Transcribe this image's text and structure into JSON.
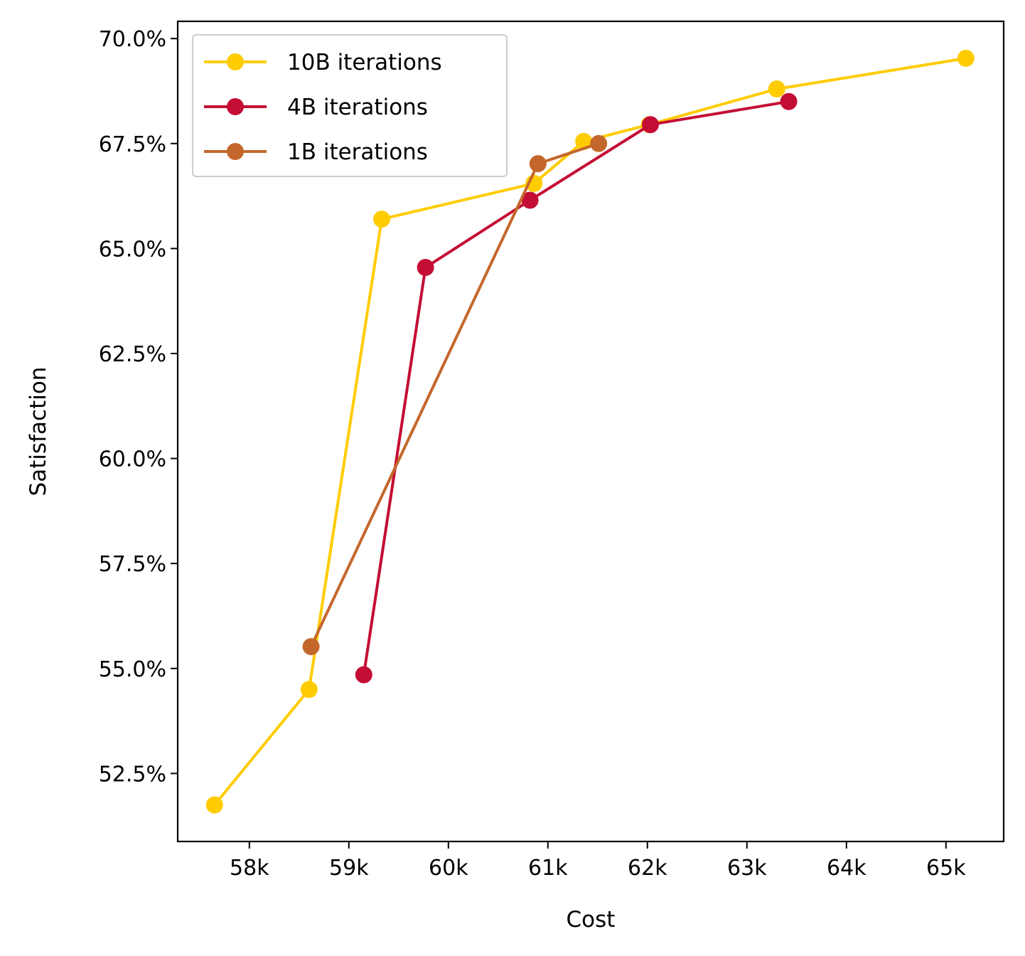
{
  "chart_data": {
    "type": "line",
    "xlabel": "Cost",
    "ylabel": "Satisfaction",
    "xlim": [
      57280,
      65580
    ],
    "ylim": [
      0.5088,
      0.7041
    ],
    "x_ticks": [
      {
        "value": 58000,
        "label": "58k"
      },
      {
        "value": 59000,
        "label": "59k"
      },
      {
        "value": 60000,
        "label": "60k"
      },
      {
        "value": 61000,
        "label": "61k"
      },
      {
        "value": 62000,
        "label": "62k"
      },
      {
        "value": 63000,
        "label": "63k"
      },
      {
        "value": 64000,
        "label": "64k"
      },
      {
        "value": 65000,
        "label": "65k"
      }
    ],
    "y_ticks": [
      {
        "value": 0.525,
        "label": "52.5%"
      },
      {
        "value": 0.55,
        "label": "55.0%"
      },
      {
        "value": 0.575,
        "label": "57.5%"
      },
      {
        "value": 0.6,
        "label": "60.0%"
      },
      {
        "value": 0.625,
        "label": "62.5%"
      },
      {
        "value": 0.65,
        "label": "65.0%"
      },
      {
        "value": 0.675,
        "label": "67.5%"
      },
      {
        "value": 0.7,
        "label": "70.0%"
      }
    ],
    "grid": false,
    "legend_position": "top-left",
    "series": [
      {
        "name": "10B iterations",
        "color": "#ffcc00",
        "x": [
          57650,
          58600,
          59330,
          60860,
          61360,
          62020,
          63300,
          65200
        ],
        "y": [
          0.5175,
          0.545,
          0.657,
          0.6655,
          0.6755,
          0.6795,
          0.688,
          0.6953
        ]
      },
      {
        "name": "4B iterations",
        "color": "#c40d35",
        "x": [
          59150,
          59770,
          60820,
          62030,
          63420
        ],
        "y": [
          0.5485,
          0.6455,
          0.6615,
          0.6795,
          0.685
        ]
      },
      {
        "name": "1B iterations",
        "color": "#c4672c",
        "x": [
          58620,
          60900,
          61510
        ],
        "y": [
          0.5552,
          0.6702,
          0.675
        ]
      }
    ]
  }
}
